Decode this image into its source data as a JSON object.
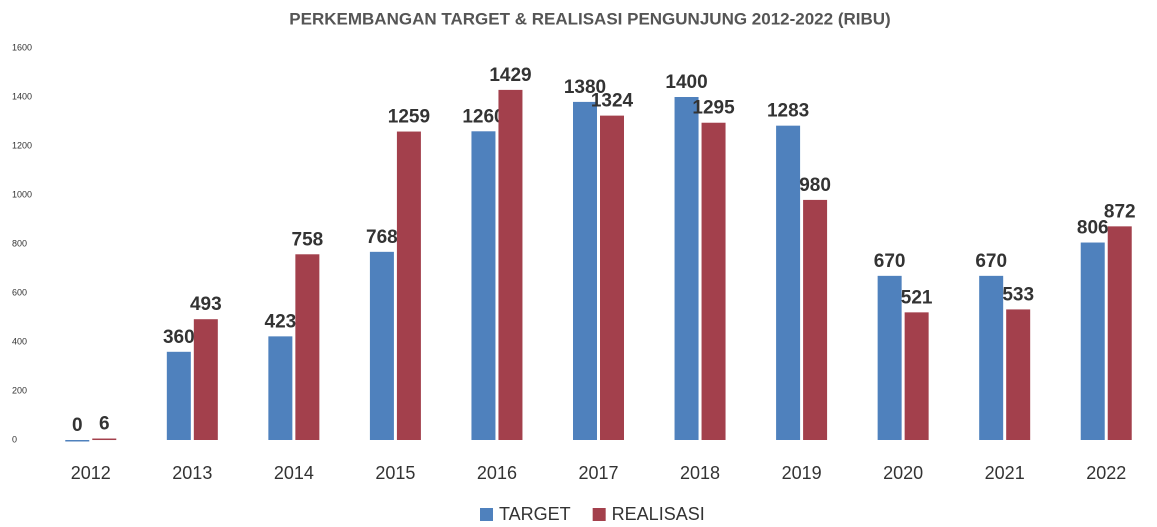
{
  "chart_data": {
    "type": "bar",
    "title": "PERKEMBANGAN TARGET & REALISASI PENGUNJUNG 2012-2022 (RIBU)",
    "categories": [
      "2012",
      "2013",
      "2014",
      "2015",
      "2016",
      "2017",
      "2018",
      "2019",
      "2020",
      "2021",
      "2022"
    ],
    "series": [
      {
        "name": "TARGET",
        "color": "#4f81bd",
        "values": [
          0,
          360,
          423,
          768,
          1260,
          1380,
          1400,
          1283,
          670,
          670,
          806
        ]
      },
      {
        "name": "REALISASI",
        "color": "#a3404c",
        "values": [
          6,
          493,
          758,
          1259,
          1429,
          1324,
          1295,
          980,
          521,
          533,
          872
        ]
      }
    ],
    "ylim": [
      0,
      1600
    ],
    "yticks": [
      0,
      200,
      400,
      600,
      800,
      1000,
      1200,
      1400,
      1600
    ],
    "grid": false,
    "legend": "bottom"
  }
}
